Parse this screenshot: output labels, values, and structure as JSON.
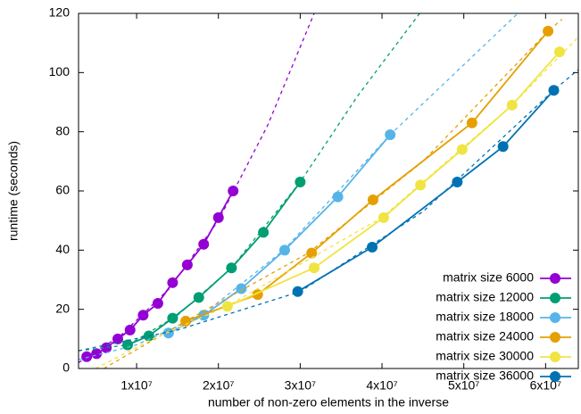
{
  "chart_data": {
    "type": "line",
    "xlabel": "number of non-zero elements in the inverse",
    "ylabel": "runtime (seconds)",
    "xlim": [
      2900000,
      64000000
    ],
    "ylim": [
      0,
      120
    ],
    "xticks": [
      {
        "value": 10000000,
        "label": "1x10⁷"
      },
      {
        "value": 20000000,
        "label": "2x10⁷"
      },
      {
        "value": 30000000,
        "label": "3x10⁷"
      },
      {
        "value": 40000000,
        "label": "4x10⁷"
      },
      {
        "value": 50000000,
        "label": "5x10⁷"
      },
      {
        "value": 60000000,
        "label": "6x10⁷"
      }
    ],
    "yticks": [
      0,
      20,
      40,
      60,
      80,
      100,
      120
    ],
    "legend": "bottom-right",
    "series": [
      {
        "name": "matrix size 6000",
        "color": "#9400d3",
        "x": [
          3900000,
          5100000,
          6300000,
          7700000,
          9200000,
          10800000,
          12600000,
          14400000,
          16200000,
          18200000,
          20000000,
          21800000
        ],
        "values": [
          4,
          5,
          7,
          10,
          13,
          18,
          22,
          29,
          35,
          42,
          51,
          60
        ],
        "fit": {
          "x": [
            2900000,
            8000000,
            14000000,
            20000000,
            26000000,
            31700000
          ],
          "values": [
            2,
            11,
            27,
            50,
            82,
            120
          ]
        }
      },
      {
        "name": "matrix size 12000",
        "color": "#009e73",
        "x": [
          8900000,
          11500000,
          14400000,
          17600000,
          21600000,
          25500000,
          30000000
        ],
        "values": [
          8,
          11,
          17,
          24,
          34,
          46,
          63
        ],
        "fit": {
          "x": [
            2900000,
            9000000,
            15000000,
            21600000,
            30000000,
            37000000,
            44600000
          ],
          "values": [
            6,
            8,
            18,
            34,
            63,
            92,
            120
          ]
        }
      },
      {
        "name": "matrix size 18000",
        "color": "#56b4e9",
        "x": [
          13900000,
          18200000,
          22800000,
          28100000,
          34600000,
          41000000
        ],
        "values": [
          12,
          18,
          27,
          40,
          58,
          79
        ],
        "fit": {
          "x": [
            2900000,
            10000000,
            18000000,
            28000000,
            41000000,
            49000000,
            56600000
          ],
          "values": [
            3,
            8,
            18,
            40,
            79,
            100,
            120
          ]
        }
      },
      {
        "name": "matrix size 24000",
        "color": "#e69f00",
        "x": [
          16000000,
          24800000,
          31400000,
          38900000,
          51000000,
          60300000
        ],
        "values": [
          16,
          25,
          39,
          57,
          83,
          114
        ],
        "fit": {
          "x": [
            6000000,
            16000000,
            31000000,
            45000000,
            60300000,
            62000000
          ],
          "values": [
            0,
            16,
            39,
            70,
            114,
            118
          ]
        }
      },
      {
        "name": "matrix size 30000",
        "color": "#f0e442",
        "x": [
          21100000,
          31700000,
          40200000,
          44700000,
          49800000,
          55900000,
          61700000
        ],
        "values": [
          21,
          34,
          51,
          62,
          74,
          89,
          107
        ],
        "fit": {
          "x": [
            5000000,
            12000000,
            21000000,
            40000000,
            55900000,
            64000000
          ],
          "values": [
            0,
            10,
            21,
            51,
            89,
            112
          ]
        }
      },
      {
        "name": "matrix size 36000",
        "color": "#0072b2",
        "x": [
          29700000,
          38800000,
          49200000,
          54800000,
          61000000
        ],
        "values": [
          26,
          41,
          63,
          75,
          94
        ],
        "fit": {
          "x": [
            2900000,
            15000000,
            30000000,
            45000000,
            61000000,
            64000000
          ],
          "values": [
            6,
            13,
            26,
            53,
            94,
            101
          ]
        }
      }
    ]
  }
}
